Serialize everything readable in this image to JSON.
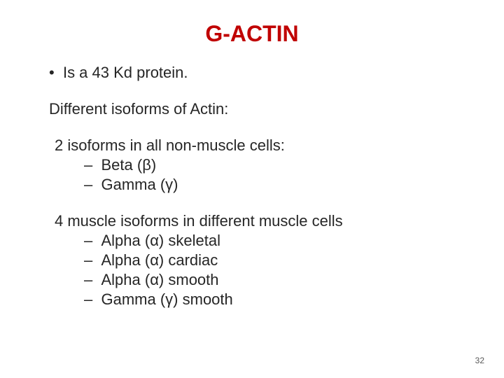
{
  "title": {
    "text": "G-ACTIN",
    "color": "#c00000",
    "fontsize": 32
  },
  "body": {
    "color": "#262626",
    "fontsize": 22,
    "bullet_glyph": "•",
    "dash_glyph": "–",
    "bullet1": "Is a 43 Kd protein.",
    "section_head": "Different isoforms of Actin:",
    "group1": {
      "head": "2 isoforms in all non-muscle cells:",
      "items": [
        "Beta (β)",
        "Gamma (γ)"
      ]
    },
    "group2": {
      "head": "4 muscle isoforms in different muscle cells",
      "items": [
        "Alpha (α) skeletal",
        "Alpha (α) cardiac",
        "Alpha (α) smooth",
        "Gamma (γ) smooth"
      ]
    }
  },
  "page_number": {
    "text": "32",
    "color": "#595959",
    "fontsize": 12
  },
  "background_color": "#ffffff"
}
